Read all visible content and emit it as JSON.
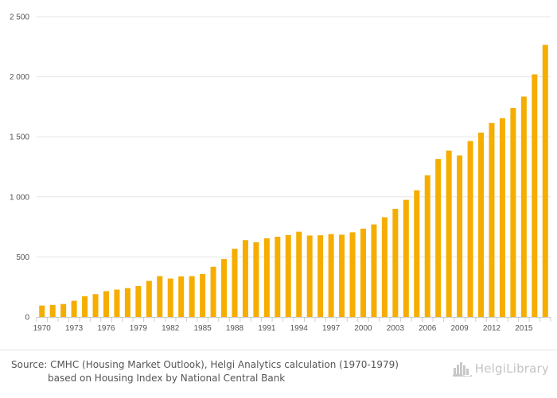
{
  "chart_data": {
    "type": "bar",
    "categories": [
      "1970",
      "1971",
      "1972",
      "1973",
      "1974",
      "1975",
      "1976",
      "1977",
      "1978",
      "1979",
      "1980",
      "1981",
      "1982",
      "1983",
      "1984",
      "1985",
      "1986",
      "1987",
      "1988",
      "1989",
      "1990",
      "1991",
      "1992",
      "1993",
      "1994",
      "1995",
      "1996",
      "1997",
      "1998",
      "1999",
      "2000",
      "2001",
      "2002",
      "2003",
      "2004",
      "2005",
      "2006",
      "2007",
      "2008",
      "2009",
      "2010",
      "2011",
      "2012",
      "2013",
      "2014",
      "2015",
      "2016",
      "2017"
    ],
    "values": [
      95,
      100,
      108,
      135,
      172,
      190,
      215,
      228,
      240,
      258,
      300,
      340,
      320,
      338,
      340,
      358,
      418,
      482,
      568,
      640,
      622,
      655,
      668,
      682,
      710,
      678,
      680,
      690,
      685,
      705,
      735,
      770,
      830,
      900,
      975,
      1055,
      1180,
      1315,
      1385,
      1345,
      1465,
      1535,
      1615,
      1655,
      1740,
      1835,
      2020,
      2265
    ],
    "x_tick_labels": [
      "1970",
      "1973",
      "1976",
      "1979",
      "1982",
      "1985",
      "1988",
      "1991",
      "1994",
      "1997",
      "2000",
      "2003",
      "2006",
      "2009",
      "2012",
      "2015"
    ],
    "y_tick_labels": [
      "0",
      "500",
      "1 000",
      "1 500",
      "2 000",
      "2 500"
    ],
    "y_ticks": [
      0,
      500,
      1000,
      1500,
      2000,
      2500
    ],
    "ylim": [
      0,
      2500
    ],
    "title": "",
    "xlabel": "",
    "ylabel": "",
    "grid": true,
    "bar_color": "#f5ad00"
  },
  "source": {
    "line1": "Source: CMHC (Housing Market Outlook), Helgi Analytics calculation (1970-1979)",
    "line2": "based on Housing Index by National Central Bank"
  },
  "logo": {
    "text": "HelgiLibrary",
    "icon": "city-skyline-icon"
  }
}
